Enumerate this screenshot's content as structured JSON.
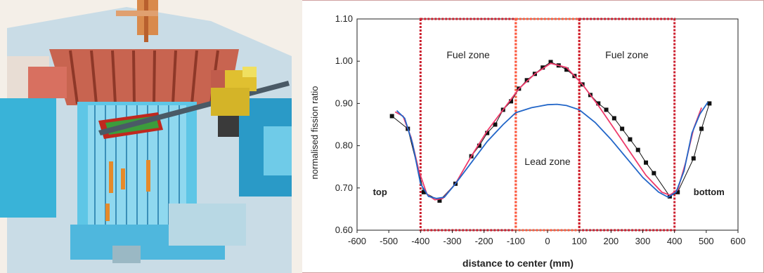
{
  "illustration": {
    "icon": "reactor-cutaway-illustration"
  },
  "chart_data": {
    "type": "line",
    "title": "",
    "xlabel": "distance to center (mm)",
    "ylabel": "normalised fission ratio",
    "xlim": [
      -600,
      600
    ],
    "ylim": [
      0.6,
      1.1
    ],
    "xticks": [
      "-600",
      "-500",
      "-400",
      "-300",
      "-200",
      "-100",
      "0",
      "100",
      "200",
      "300",
      "400",
      "500",
      "600"
    ],
    "yticks": [
      "0.60",
      "0.70",
      "0.80",
      "0.90",
      "1.00",
      "1.10"
    ],
    "grid": false,
    "legend": "none",
    "zones": [
      {
        "label": "Fuel zone",
        "x0": -400,
        "x1": -100,
        "color": "#cc1e2e"
      },
      {
        "label": "Lead zone",
        "x0": -100,
        "x1": 100,
        "color": "#ff5a3c"
      },
      {
        "label": "Fuel zone",
        "x0": 100,
        "x1": 400,
        "color": "#cc1e2e"
      }
    ],
    "annotations": [
      {
        "text": "top",
        "x": -550,
        "y": 0.69
      },
      {
        "text": "bottom",
        "x": 460,
        "y": 0.69
      }
    ],
    "series": [
      {
        "color": "#111111",
        "marker": "square",
        "x": [
          -490,
          -440,
          -390,
          -340,
          -290,
          -240,
          -215,
          -190,
          -165,
          -140,
          -115,
          -90,
          -65,
          -40,
          -15,
          10,
          35,
          60,
          85,
          110,
          135,
          160,
          185,
          210,
          235,
          260,
          285,
          310,
          335,
          385,
          410,
          460,
          485,
          510
        ],
        "y": [
          0.87,
          0.84,
          0.69,
          0.67,
          0.71,
          0.775,
          0.8,
          0.83,
          0.85,
          0.885,
          0.905,
          0.935,
          0.955,
          0.97,
          0.985,
          0.998,
          0.99,
          0.98,
          0.965,
          0.945,
          0.92,
          0.9,
          0.885,
          0.865,
          0.84,
          0.815,
          0.79,
          0.76,
          0.735,
          0.68,
          0.69,
          0.77,
          0.84,
          0.9
        ]
      },
      {
        "color": "#ee3a6a",
        "marker": "none",
        "x": [
          -480,
          -455,
          -430,
          -405,
          -380,
          -355,
          -330,
          -290,
          -240,
          -190,
          -140,
          -90,
          -40,
          10,
          60,
          110,
          160,
          210,
          260,
          310,
          360,
          385,
          410,
          435,
          460,
          485
        ],
        "y": [
          0.88,
          0.87,
          0.82,
          0.74,
          0.685,
          0.672,
          0.675,
          0.71,
          0.775,
          0.835,
          0.885,
          0.935,
          0.97,
          0.995,
          0.985,
          0.945,
          0.895,
          0.84,
          0.785,
          0.73,
          0.69,
          0.683,
          0.695,
          0.76,
          0.84,
          0.89
        ]
      },
      {
        "color": "#2266c8",
        "marker": "none",
        "x": [
          -475,
          -450,
          -425,
          -400,
          -375,
          -350,
          -325,
          -290,
          -240,
          -190,
          -140,
          -100,
          -50,
          0,
          30,
          60,
          100,
          150,
          200,
          250,
          300,
          350,
          380,
          405,
          430,
          455,
          480,
          505
        ],
        "y": [
          0.883,
          0.865,
          0.805,
          0.71,
          0.68,
          0.675,
          0.678,
          0.71,
          0.76,
          0.81,
          0.85,
          0.878,
          0.89,
          0.897,
          0.898,
          0.895,
          0.885,
          0.855,
          0.815,
          0.77,
          0.725,
          0.69,
          0.678,
          0.69,
          0.74,
          0.83,
          0.875,
          0.903
        ]
      }
    ]
  }
}
